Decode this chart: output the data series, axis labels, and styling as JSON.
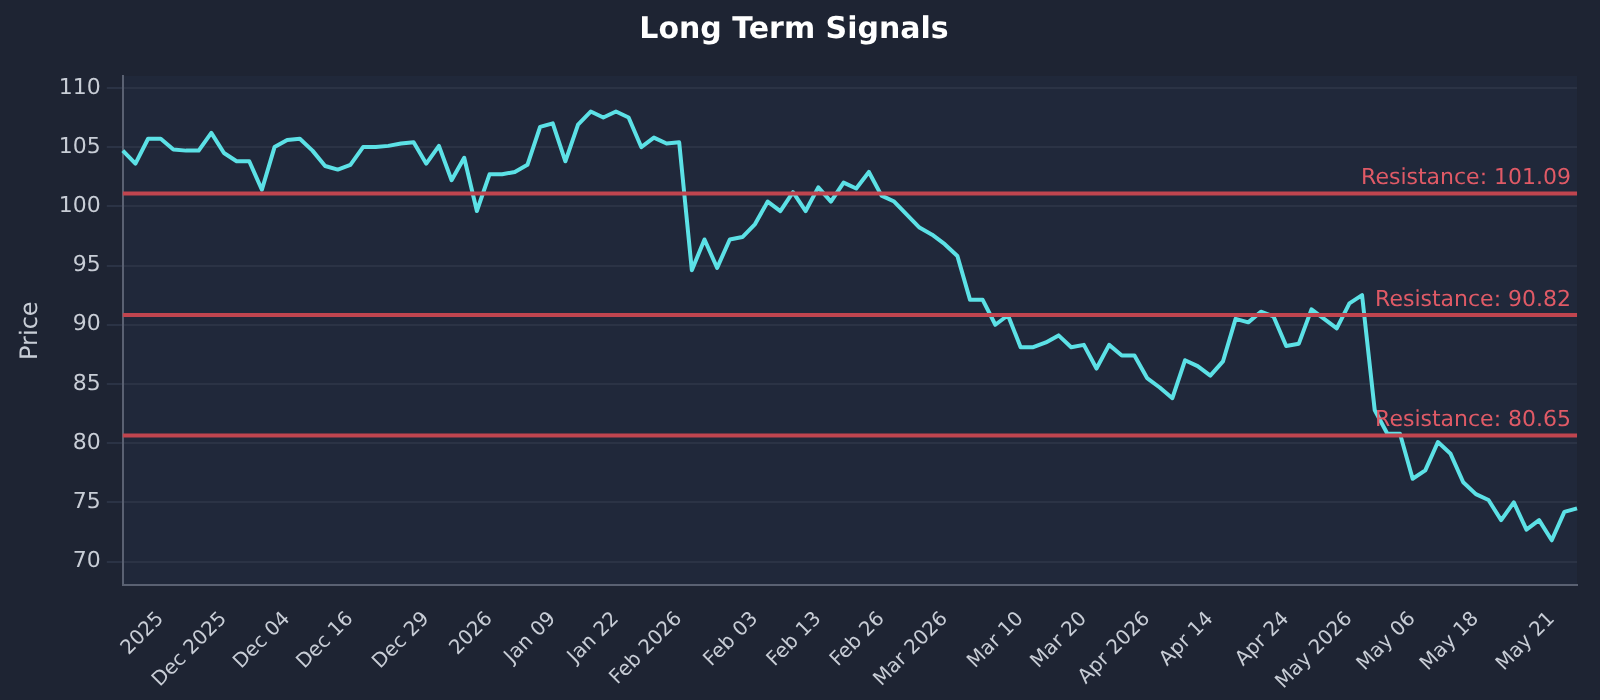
{
  "chart_data": {
    "type": "line",
    "title": "Long Term Signals",
    "ylabel": "Price",
    "categories": [
      null,
      null,
      null,
      "2025",
      null,
      null,
      null,
      null,
      "Dec 2025",
      null,
      null,
      null,
      null,
      "Dec 04",
      null,
      null,
      null,
      null,
      "Dec 16",
      null,
      null,
      null,
      null,
      null,
      "Dec 29",
      null,
      null,
      null,
      null,
      "2026",
      null,
      null,
      null,
      null,
      "Jan 09",
      null,
      null,
      null,
      null,
      "Jan 22",
      null,
      null,
      null,
      null,
      "Feb 2026",
      null,
      null,
      null,
      null,
      null,
      "Feb 03",
      null,
      null,
      null,
      null,
      "Feb 13",
      null,
      null,
      null,
      null,
      "Feb 26",
      null,
      null,
      null,
      null,
      "Mar 2026",
      null,
      null,
      null,
      null,
      null,
      "Mar 10",
      null,
      null,
      null,
      null,
      "Mar 20",
      null,
      null,
      null,
      null,
      "Apr 2026",
      null,
      null,
      null,
      null,
      "Apr 14",
      null,
      null,
      null,
      null,
      null,
      "Apr 24",
      null,
      null,
      null,
      null,
      "May 2026",
      null,
      null,
      null,
      null,
      "May 06",
      null,
      null,
      null,
      null,
      "May 18",
      null,
      null,
      null,
      null,
      null,
      "May 21",
      null,
      null
    ],
    "series": [
      {
        "color": "#5ce1e6",
        "values": [
          104.7,
          103.6,
          105.7,
          105.7,
          104.8,
          104.7,
          104.7,
          106.2,
          104.5,
          103.8,
          103.8,
          101.4,
          105.0,
          105.6,
          105.7,
          104.7,
          103.4,
          103.1,
          103.5,
          105.0,
          105.0,
          105.1,
          105.3,
          105.4,
          103.6,
          105.1,
          102.2,
          104.1,
          99.6,
          102.7,
          102.7,
          102.9,
          103.5,
          106.7,
          107.0,
          103.8,
          106.9,
          108.0,
          107.5,
          108.0,
          107.5,
          105.0,
          105.8,
          105.3,
          105.4,
          94.6,
          97.2,
          94.8,
          97.2,
          97.4,
          98.5,
          100.4,
          99.6,
          101.2,
          99.6,
          101.6,
          100.4,
          102.0,
          101.5,
          102.9,
          100.9,
          100.4,
          99.3,
          98.2,
          97.6,
          96.8,
          95.8,
          92.1,
          92.1,
          90.0,
          90.8,
          88.1,
          88.1,
          88.5,
          89.1,
          88.1,
          88.3,
          86.3,
          88.3,
          87.4,
          87.4,
          85.5,
          84.7,
          83.8,
          87.0,
          86.5,
          85.7,
          86.9,
          90.5,
          90.2,
          91.1,
          90.7,
          88.2,
          88.4,
          91.3,
          90.5,
          89.7,
          91.8,
          92.5,
          82.8,
          80.8,
          80.8,
          77.0,
          77.7,
          80.1,
          79.1,
          76.7,
          75.7,
          75.2,
          73.5,
          75.0,
          72.7,
          73.5,
          71.8,
          74.2,
          74.5
        ]
      }
    ],
    "ylim": [
      68,
      111
    ],
    "yticks": [
      70,
      75,
      80,
      85,
      90,
      95,
      100,
      105,
      110
    ],
    "grid": "y",
    "legend": false,
    "marker": "none",
    "line_style": "solid",
    "ref_lines": [
      {
        "axis": "y",
        "value": 101.09,
        "label": "Resistance: 101.09",
        "color": "#c0454f"
      },
      {
        "axis": "y",
        "value": 90.82,
        "label": "Resistance: 90.82",
        "color": "#c0454f"
      },
      {
        "axis": "y",
        "value": 80.65,
        "label": "Resistance: 80.65",
        "color": "#c0454f"
      }
    ]
  }
}
